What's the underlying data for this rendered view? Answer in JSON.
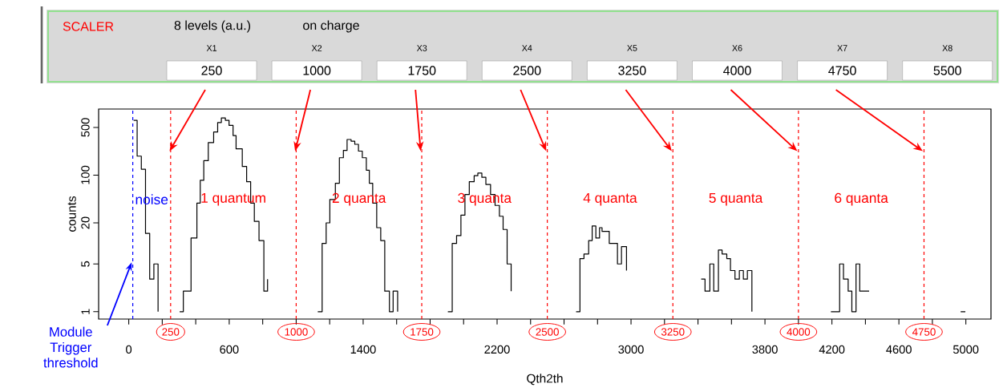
{
  "chart_data": {
    "type": "step",
    "xlabel": "Qth2th",
    "ylabel": "counts",
    "x": [
      29,
      50,
      75,
      100,
      125,
      150,
      175,
      null,
      304,
      326,
      372,
      407,
      427,
      448,
      475,
      507,
      531,
      553,
      577,
      599,
      623,
      641,
      678,
      704,
      728,
      750,
      778,
      807,
      829,
      null,
      1129,
      1155,
      1179,
      1201,
      1234,
      1258,
      1282,
      1304,
      1328,
      1350,
      1372,
      1395,
      1419,
      1437,
      1457,
      1481,
      1505,
      1529,
      1557,
      1579,
      1606,
      null,
      1906,
      1932,
      1958,
      1984,
      2008,
      2034,
      2063,
      2085,
      2109,
      2133,
      2161,
      2188,
      2214,
      2236,
      2260,
      2284,
      null,
      2672,
      2695,
      2719,
      2747,
      2768,
      2790,
      2812,
      2827,
      2870,
      2919,
      2943,
      2973,
      null,
      3419,
      3442,
      3471,
      3494,
      3522,
      3544,
      3572,
      3594,
      3621,
      3647,
      3671,
      3695,
      3722,
      null,
      4194,
      4246,
      4269,
      4297,
      4319,
      4344,
      4366,
      4422,
      null,
      4969,
      4997
    ],
    "series": [
      {
        "color": "#000000",
        "values": [
          635,
          190,
          122,
          14,
          3,
          5,
          1,
          null,
          1,
          2,
          12,
          39,
          84,
          163,
          300,
          428,
          590,
          690,
          635,
          535,
          380,
          243,
          134,
          80,
          39,
          21,
          11,
          2,
          3,
          null,
          1,
          10,
          20,
          44,
          76,
          180,
          230,
          333,
          315,
          283,
          225,
          180,
          118,
          76,
          39,
          17,
          11,
          2,
          1,
          2,
          1,
          null,
          1,
          10,
          13,
          26,
          52,
          80,
          98,
          107,
          93,
          73,
          52,
          36,
          25,
          16,
          5,
          2,
          null,
          1,
          6,
          7,
          11,
          18,
          12,
          17,
          15,
          10,
          5,
          9,
          4,
          null,
          3,
          2,
          5,
          2,
          8,
          7,
          6,
          4,
          3,
          4,
          3,
          4,
          1,
          null,
          1,
          5,
          3,
          2,
          1,
          5,
          2,
          2,
          null,
          1,
          1
        ]
      }
    ],
    "log": "y",
    "grid": false,
    "marker": "none",
    "line_style": "solid",
    "xlim": [
      -180,
      5150
    ],
    "ylim": [
      0.78,
      930
    ],
    "xticks": [
      0,
      {
        "value": 200,
        "label": null
      },
      {
        "value": 400,
        "label": null
      },
      600,
      {
        "value": 800,
        "label": null
      },
      {
        "value": 1000,
        "label": null
      },
      {
        "value": 1200,
        "label": null
      },
      1400,
      {
        "value": 1600,
        "label": null
      },
      {
        "value": 1800,
        "label": null
      },
      {
        "value": 2000,
        "label": null
      },
      2200,
      {
        "value": 2400,
        "label": null
      },
      {
        "value": 2600,
        "label": null
      },
      {
        "value": 2800,
        "label": null
      },
      3000,
      {
        "value": 3200,
        "label": null
      },
      {
        "value": 3400,
        "label": null
      },
      {
        "value": 3600,
        "label": null
      },
      3800,
      {
        "value": 4000,
        "label": null
      },
      4200,
      {
        "value": 4400,
        "label": null
      },
      4600,
      {
        "value": 4800,
        "label": null
      },
      5000
    ],
    "yticks": [
      1,
      5,
      20,
      100,
      500
    ],
    "ref_lines": [
      {
        "axis": "x",
        "value": 24,
        "label": "Module Trigger threshold",
        "color": "#0000ff",
        "line_style": "dashed"
      },
      {
        "axis": "x",
        "value": 250,
        "label": "250",
        "color": "#ff0000",
        "line_style": "dashed"
      },
      {
        "axis": "x",
        "value": 1000,
        "label": "1000",
        "color": "#ff0000",
        "line_style": "dashed"
      },
      {
        "axis": "x",
        "value": 1750,
        "label": "1750",
        "color": "#ff0000",
        "line_style": "dashed"
      },
      {
        "axis": "x",
        "value": 2500,
        "label": "2500",
        "color": "#ff0000",
        "line_style": "dashed"
      },
      {
        "axis": "x",
        "value": 3250,
        "label": "3250",
        "color": "#ff0000",
        "line_style": "dashed"
      },
      {
        "axis": "x",
        "value": 4000,
        "label": "4000",
        "color": "#ff0000",
        "line_style": "dashed"
      },
      {
        "axis": "x",
        "value": 4750,
        "label": "4750",
        "color": "#ff0000",
        "line_style": "dashed"
      }
    ],
    "annotations": [
      "SCALER",
      "8 levels (a.u.)",
      "on charge",
      "X1",
      "X2",
      "X3",
      "X4",
      "X5",
      "X6",
      "X7",
      "X8",
      {
        "text": "250",
        "x": 250,
        "y": 224
      },
      {
        "text": "1000",
        "x": 1000,
        "y": 224
      },
      {
        "text": "1750",
        "x": 1750,
        "y": 224
      },
      {
        "text": "2500",
        "x": 2500,
        "y": 224
      },
      {
        "text": "3250",
        "x": 3250,
        "y": 224
      },
      {
        "text": "4000",
        "x": 4000,
        "y": 224
      },
      {
        "text": "4750",
        "x": 4750,
        "y": 224
      },
      "5500",
      "noise",
      "1 quantum",
      "2 quanta",
      "3 quanta",
      "4 quanta",
      "5 quanta",
      "6 quanta"
    ]
  }
}
